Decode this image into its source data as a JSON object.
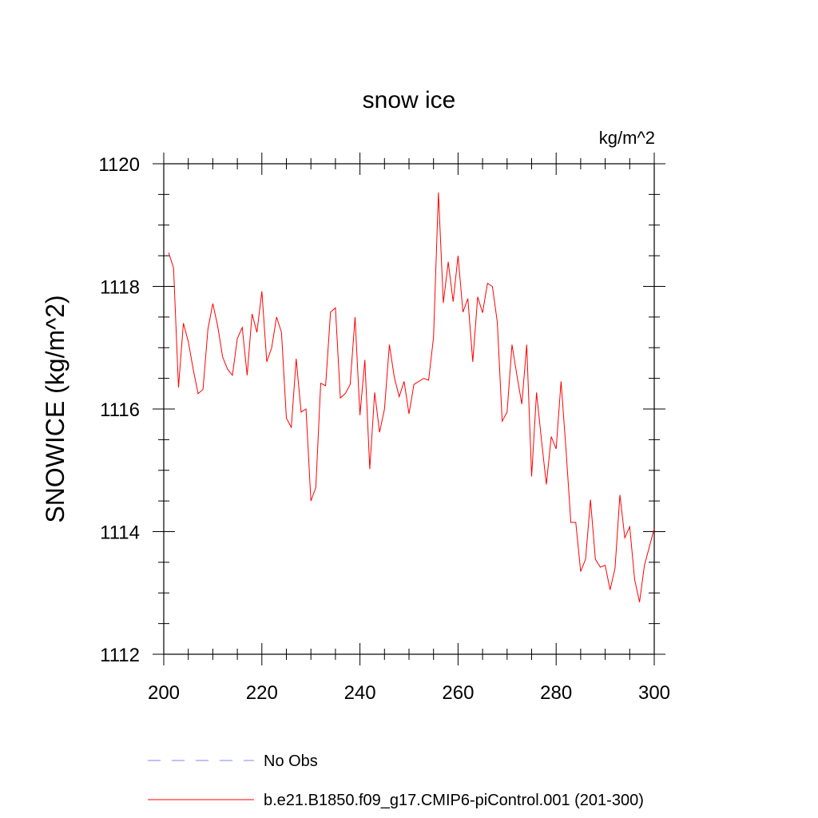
{
  "chart_data": {
    "type": "line",
    "title": "snow ice",
    "units_label": "kg/m^2",
    "xlabel": "",
    "ylabel": "SNOWICE  (kg/m^2)",
    "xlim": [
      200,
      300
    ],
    "ylim": [
      1112,
      1120
    ],
    "x_ticks": [
      200,
      220,
      240,
      260,
      280,
      300
    ],
    "y_ticks": [
      1112,
      1114,
      1116,
      1118,
      1120
    ],
    "x_minor_step": 5,
    "y_minor_step": 0.5,
    "grid": false,
    "colors": {
      "model": "#ff0000",
      "obs": "#8080ff"
    },
    "legend": [
      {
        "label": "No Obs",
        "style": "dashed",
        "color": "#8080ff"
      },
      {
        "label": "b.e21.B1850.f09_g17.CMIP6-piControl.001 (201-300)",
        "style": "solid",
        "color": "#ff0000"
      }
    ],
    "series": [
      {
        "name": "b.e21.B1850.f09_g17.CMIP6-piControl.001 (201-300)",
        "x_start": 201,
        "x_step": 1,
        "values": [
          1118.55,
          1118.3,
          1116.35,
          1117.4,
          1117.1,
          1116.65,
          1116.25,
          1116.32,
          1117.3,
          1117.72,
          1117.35,
          1116.85,
          1116.65,
          1116.55,
          1117.15,
          1117.33,
          1116.55,
          1117.55,
          1117.25,
          1117.92,
          1116.77,
          1117.0,
          1117.5,
          1117.25,
          1115.85,
          1115.7,
          1116.82,
          1115.95,
          1116.0,
          1114.5,
          1114.72,
          1116.42,
          1116.38,
          1117.58,
          1117.65,
          1116.18,
          1116.25,
          1116.4,
          1117.5,
          1115.9,
          1116.8,
          1115.02,
          1116.27,
          1115.62,
          1116.0,
          1117.05,
          1116.52,
          1116.2,
          1116.45,
          1115.92,
          1116.4,
          1116.45,
          1116.5,
          1116.47,
          1117.17,
          1119.53,
          1117.73,
          1118.4,
          1117.75,
          1118.5,
          1117.58,
          1117.8,
          1116.77,
          1117.83,
          1117.57,
          1118.05,
          1118.0,
          1117.42,
          1115.8,
          1115.95,
          1117.05,
          1116.55,
          1116.08,
          1117.05,
          1114.9,
          1116.27,
          1115.5,
          1114.77,
          1115.55,
          1115.35,
          1116.45,
          1115.35,
          1114.15,
          1114.15,
          1113.35,
          1113.55,
          1114.52,
          1113.55,
          1113.42,
          1113.45,
          1113.05,
          1113.4,
          1114.6,
          1113.9,
          1114.08,
          1113.22,
          1112.85,
          1113.45,
          1113.75,
          1114.05
        ]
      }
    ]
  }
}
